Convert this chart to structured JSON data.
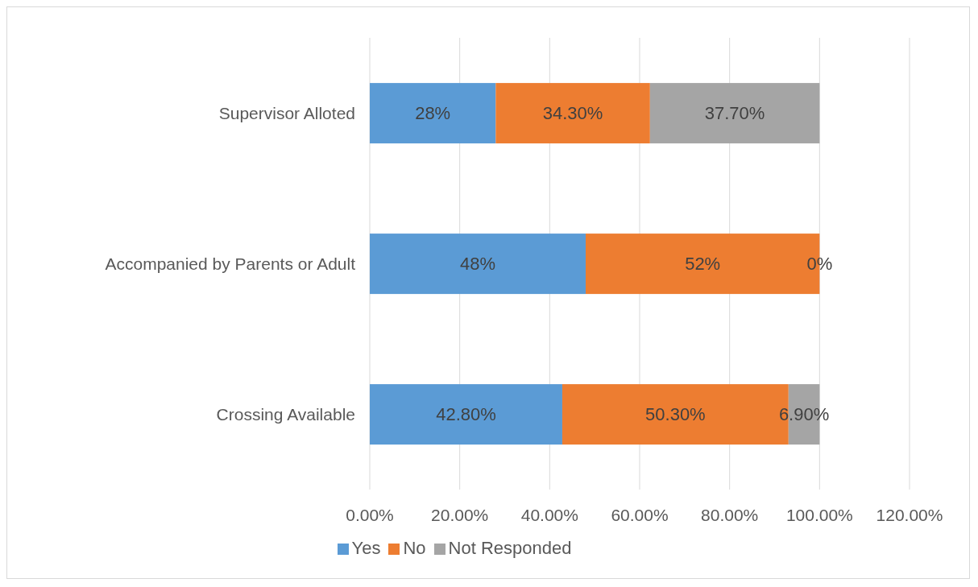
{
  "chart_data": {
    "type": "bar",
    "orientation": "horizontal",
    "stacked": true,
    "categories": [
      "Supervisor Alloted",
      "Accompanied by Parents or Adult",
      "Crossing Available"
    ],
    "series": [
      {
        "name": "Yes",
        "color": "#5b9bd5",
        "values": [
          28,
          48,
          42.8
        ],
        "value_labels": [
          "28%",
          "48%",
          "42.80%"
        ]
      },
      {
        "name": "No",
        "color": "#ed7d31",
        "values": [
          34.3,
          52,
          50.3
        ],
        "value_labels": [
          "34.30%",
          "52%",
          "50.30%"
        ]
      },
      {
        "name": "Not Responded",
        "color": "#a5a5a5",
        "values": [
          37.7,
          0,
          6.9
        ],
        "value_labels": [
          "37.70%",
          "0%",
          "6.90%"
        ]
      }
    ],
    "xlim": [
      0,
      120
    ],
    "xticks": [
      {
        "value": 0,
        "label": "0.00%"
      },
      {
        "value": 20,
        "label": "20.00%"
      },
      {
        "value": 40,
        "label": "40.00%"
      },
      {
        "value": 60,
        "label": "60.00%"
      },
      {
        "value": 80,
        "label": "80.00%"
      },
      {
        "value": 100,
        "label": "100.00%"
      },
      {
        "value": 120,
        "label": "120.00%"
      }
    ],
    "grid": "x",
    "legend": "bottom"
  }
}
